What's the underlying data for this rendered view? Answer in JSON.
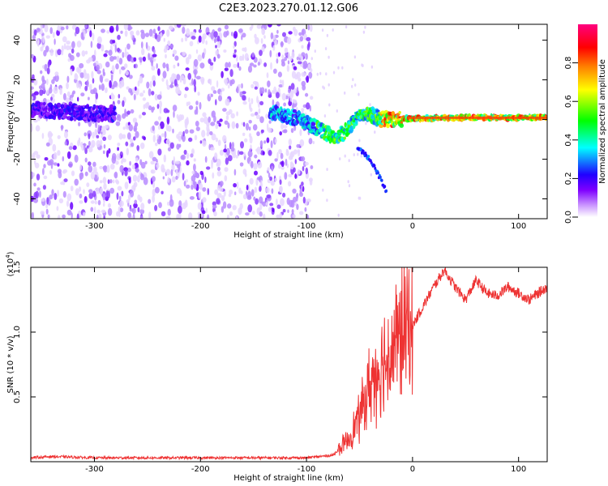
{
  "title": "C2E3.2023.270.01.12.G06",
  "chart_data": [
    {
      "type": "heatmap",
      "xlabel": "Height of straight line (km)",
      "ylabel": "Frequency (Hz)",
      "xlim": [
        -360,
        127
      ],
      "ylim": [
        -50,
        48
      ],
      "xticks": [
        -300,
        -200,
        -100,
        0,
        100
      ],
      "yticks": [
        -40,
        -20,
        0,
        20,
        40
      ],
      "colorbar": {
        "label": "Normalized spectral amplitude",
        "range": [
          0.0,
          1.0
        ],
        "ticks": [
          "0.0",
          "0.2",
          "0.4",
          "0.6",
          "0.8"
        ],
        "colors": [
          "#ffffff",
          "#cc99ff",
          "#7f00ff",
          "#0000ff",
          "#00ffff",
          "#00ff00",
          "#ffff00",
          "#ff8000",
          "#ff0000",
          "#ff0080"
        ]
      },
      "signal_track": [
        {
          "x": -355,
          "y": 5
        },
        {
          "x": -330,
          "y": 4
        },
        {
          "x": -300,
          "y": 3
        },
        {
          "x": -280,
          "y": 3
        },
        {
          "x": -130,
          "y": 3
        },
        {
          "x": -110,
          "y": 1
        },
        {
          "x": -95,
          "y": -3
        },
        {
          "x": -80,
          "y": -7
        },
        {
          "x": -70,
          "y": -9
        },
        {
          "x": -60,
          "y": -4
        },
        {
          "x": -50,
          "y": 3
        },
        {
          "x": -40,
          "y": 3
        },
        {
          "x": -30,
          "y": 0
        },
        {
          "x": 0,
          "y": 0.5
        },
        {
          "x": 50,
          "y": 1
        },
        {
          "x": 127,
          "y": 1
        }
      ],
      "branch_track": [
        {
          "x": -50,
          "y": -15
        },
        {
          "x": -40,
          "y": -20
        },
        {
          "x": -30,
          "y": -30
        },
        {
          "x": -25,
          "y": -36
        }
      ]
    },
    {
      "type": "line",
      "xlabel": "Height of straight line (km)",
      "ylabel": "SNR (10 * v/v)",
      "y_multiplier": "(x10",
      "y_multiplier_exp": "4",
      "y_multiplier_close": ")",
      "xlim": [
        -360,
        127
      ],
      "ylim": [
        0,
        1.5
      ],
      "xticks": [
        -300,
        -200,
        -100,
        0,
        100
      ],
      "yticks": [
        "0.5",
        "1.0",
        "1.5"
      ],
      "color": "#ee3333",
      "envelope": [
        {
          "x": -360,
          "y": 0.03
        },
        {
          "x": -340,
          "y": 0.04
        },
        {
          "x": -300,
          "y": 0.03
        },
        {
          "x": -200,
          "y": 0.03
        },
        {
          "x": -100,
          "y": 0.03
        },
        {
          "x": -75,
          "y": 0.05
        },
        {
          "x": -60,
          "y": 0.18
        },
        {
          "x": -50,
          "y": 0.35
        },
        {
          "x": -40,
          "y": 0.6
        },
        {
          "x": -30,
          "y": 0.75
        },
        {
          "x": -20,
          "y": 0.85
        },
        {
          "x": -10,
          "y": 1.0
        },
        {
          "x": 0,
          "y": 1.05
        },
        {
          "x": 10,
          "y": 1.2
        },
        {
          "x": 20,
          "y": 1.35
        },
        {
          "x": 30,
          "y": 1.48
        },
        {
          "x": 40,
          "y": 1.35
        },
        {
          "x": 50,
          "y": 1.25
        },
        {
          "x": 60,
          "y": 1.4
        },
        {
          "x": 70,
          "y": 1.3
        },
        {
          "x": 80,
          "y": 1.28
        },
        {
          "x": 90,
          "y": 1.35
        },
        {
          "x": 100,
          "y": 1.3
        },
        {
          "x": 110,
          "y": 1.25
        },
        {
          "x": 127,
          "y": 1.35
        }
      ]
    }
  ]
}
